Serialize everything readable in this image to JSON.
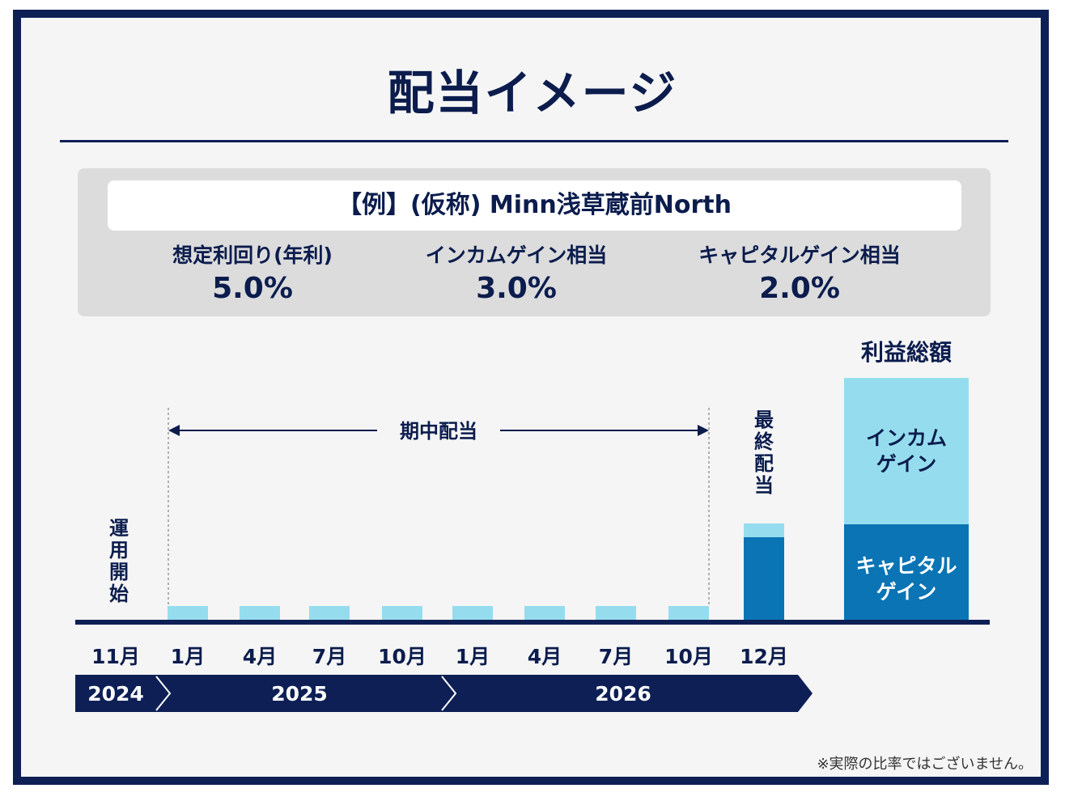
{
  "title": "配当イメージ",
  "example": "【例】(仮称) Minn浅草蔵前North",
  "metrics": [
    {
      "label": "想定利回り(年利)",
      "value": "5.0%"
    },
    {
      "label": "インカムゲイン相当",
      "value": "3.0%"
    },
    {
      "label": "キャピタルゲイン相当",
      "value": "2.0%"
    }
  ],
  "chart_data": {
    "type": "bar",
    "categories": [
      "11月",
      "1月",
      "4月",
      "7月",
      "10月",
      "1月",
      "4月",
      "7月",
      "10月",
      "12月"
    ],
    "years": [
      "2024",
      "2025",
      "2026"
    ],
    "series": [
      {
        "name": "インカムゲイン",
        "color": "#95ddee",
        "values": [
          0,
          1,
          1,
          1,
          1,
          1,
          1,
          1,
          1,
          1
        ]
      },
      {
        "name": "キャピタルゲイン",
        "color": "#0a74b4",
        "values": [
          0,
          0,
          0,
          0,
          0,
          0,
          0,
          0,
          0,
          6
        ]
      }
    ],
    "total": {
      "label": "利益総額",
      "income": 15,
      "capital": 10
    },
    "annotations": {
      "start": "運用開始",
      "interim": "期中配当",
      "final": "最終配当"
    },
    "total_labels": {
      "income": [
        "インカム",
        "ゲイン"
      ],
      "capital": [
        "キャピタル",
        "ゲイン"
      ]
    },
    "axis_color": "#0d1f55"
  },
  "note": "※実際の比率ではございません。"
}
